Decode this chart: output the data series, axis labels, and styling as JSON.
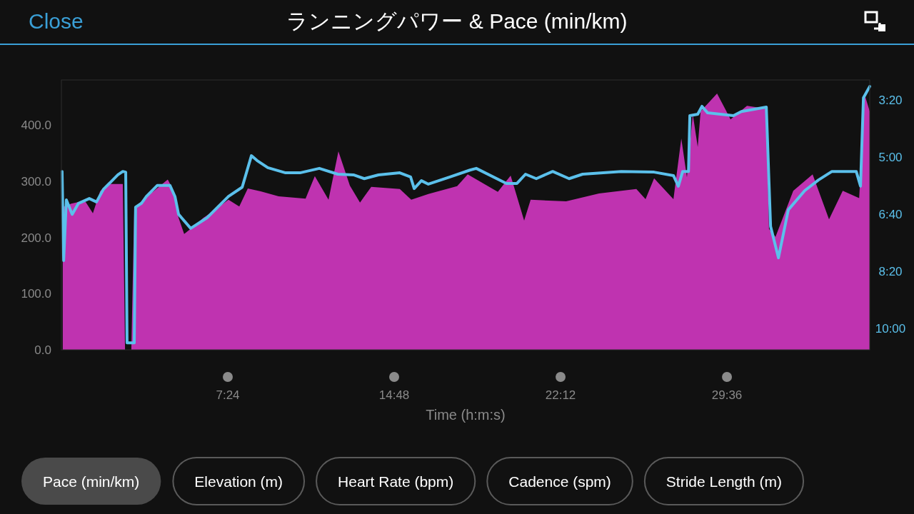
{
  "chart_data": {
    "type": "area",
    "title": "ランニングパワー & Pace (min/km)",
    "xlabel": "Time (h:m:s)",
    "xlim": [
      0,
      35.95
    ],
    "xticks": [
      {
        "value": 7.4,
        "label": "7:24"
      },
      {
        "value": 14.8,
        "label": "14:48"
      },
      {
        "value": 22.2,
        "label": "22:12"
      },
      {
        "value": 29.6,
        "label": "29:36"
      }
    ],
    "ylim": [
      0,
      480
    ],
    "yticks": [
      {
        "value": 0,
        "label": "0.0"
      },
      {
        "value": 100,
        "label": "100.0"
      },
      {
        "value": 200,
        "label": "200.0"
      },
      {
        "value": 300,
        "label": "300.0"
      },
      {
        "value": 400,
        "label": "400.0"
      }
    ],
    "y2lim": [
      10.625,
      2.75
    ],
    "y2ticks": [
      {
        "value": 3.3333,
        "label": "3:20"
      },
      {
        "value": 5,
        "label": "5:00"
      },
      {
        "value": 6.6667,
        "label": "6:40"
      },
      {
        "value": 8.3333,
        "label": "8:20"
      },
      {
        "value": 10,
        "label": "10:00"
      }
    ],
    "grid": false,
    "series": [
      {
        "color": "#bf33b0",
        "x": [
          0.06,
          0.44,
          0.76,
          1.08,
          1.4,
          1.72,
          2.03,
          2.73,
          2.83,
          3.11,
          3.24,
          3.46,
          3.78,
          4.1,
          4.73,
          4.95,
          5.21,
          5.46,
          5.84,
          6.32,
          6.8,
          7.43,
          7.91,
          8.29,
          8.86,
          9.66,
          10.86,
          11.27,
          11.88,
          12.32,
          12.83,
          13.28,
          13.78,
          15.05,
          15.56,
          16.32,
          17.6,
          18.07,
          19.41,
          19.98,
          20.58,
          20.87,
          22.45,
          23.91,
          25.57,
          25.98,
          26.36,
          27.22,
          27.57,
          27.82,
          28.08,
          28.3,
          28.43,
          29.16,
          29.76,
          30.49,
          31.35,
          31.47,
          31.76,
          32.55,
          33.41,
          34.14,
          34.75,
          35.48,
          35.73,
          35.95
        ],
        "values": [
          254,
          260,
          263,
          263,
          243,
          282,
          295,
          295,
          0,
          0,
          254,
          260,
          273,
          282,
          303,
          286,
          235,
          206,
          218,
          235,
          248,
          267,
          255,
          287,
          282,
          273,
          269,
          309,
          267,
          353,
          292,
          262,
          290,
          286,
          267,
          277,
          291,
          312,
          281,
          310,
          230,
          267,
          264,
          278,
          286,
          268,
          305,
          268,
          376,
          307,
          419,
          361,
          424,
          456,
          410,
          434,
          429,
          215,
          201,
          283,
          312,
          232,
          283,
          270,
          453,
          424
        ]
      },
      {
        "type": "line",
        "axis": "y2",
        "color": "#5bc0eb",
        "x": [
          0.03,
          0.1,
          0.22,
          0.48,
          0.76,
          1.24,
          1.56,
          1.87,
          2.19,
          2.51,
          2.73,
          2.86,
          2.92,
          3.24,
          3.3,
          3.56,
          3.78,
          4.26,
          4.83,
          5.05,
          5.21,
          5.75,
          6.48,
          7.43,
          8.04,
          8.45,
          8.7,
          9.18,
          9.97,
          10.61,
          11.47,
          12.29,
          12.99,
          13.47,
          14.1,
          15.05,
          15.53,
          15.69,
          16.01,
          16.32,
          17.28,
          18.17,
          18.45,
          19.79,
          20.26,
          20.64,
          21.12,
          21.85,
          22.58,
          23.18,
          24.9,
          26.36,
          27.22,
          27.44,
          27.63,
          27.89,
          27.95,
          28.3,
          28.49,
          28.74,
          29.89,
          30.24,
          31.35,
          31.54,
          31.89,
          32.33,
          33.06,
          33.67,
          34.27,
          35.35,
          35.54,
          35.67,
          35.95
        ],
        "values": [
          5.42,
          8.02,
          6.25,
          6.67,
          6.35,
          6.21,
          6.31,
          5.94,
          5.73,
          5.52,
          5.42,
          5.44,
          10.42,
          10.42,
          6.46,
          6.35,
          6.15,
          5.83,
          5.83,
          6.15,
          6.67,
          7.08,
          6.77,
          6.15,
          5.88,
          4.96,
          5.1,
          5.31,
          5.46,
          5.46,
          5.33,
          5.5,
          5.52,
          5.63,
          5.52,
          5.46,
          5.58,
          5.92,
          5.69,
          5.79,
          5.58,
          5.38,
          5.33,
          5.77,
          5.77,
          5.5,
          5.63,
          5.42,
          5.63,
          5.5,
          5.42,
          5.44,
          5.54,
          5.85,
          5.42,
          5.42,
          3.79,
          3.75,
          3.52,
          3.71,
          3.79,
          3.67,
          3.54,
          7.02,
          7.94,
          6.54,
          5.98,
          5.67,
          5.42,
          5.42,
          5.85,
          3.27,
          2.94
        ]
      }
    ],
    "annotations": [
      "Close",
      "Pace (min/km)",
      "Elevation (m)",
      "Heart Rate (bpm)",
      "Cadence (spm)",
      "Stride Length (m)"
    ]
  }
}
